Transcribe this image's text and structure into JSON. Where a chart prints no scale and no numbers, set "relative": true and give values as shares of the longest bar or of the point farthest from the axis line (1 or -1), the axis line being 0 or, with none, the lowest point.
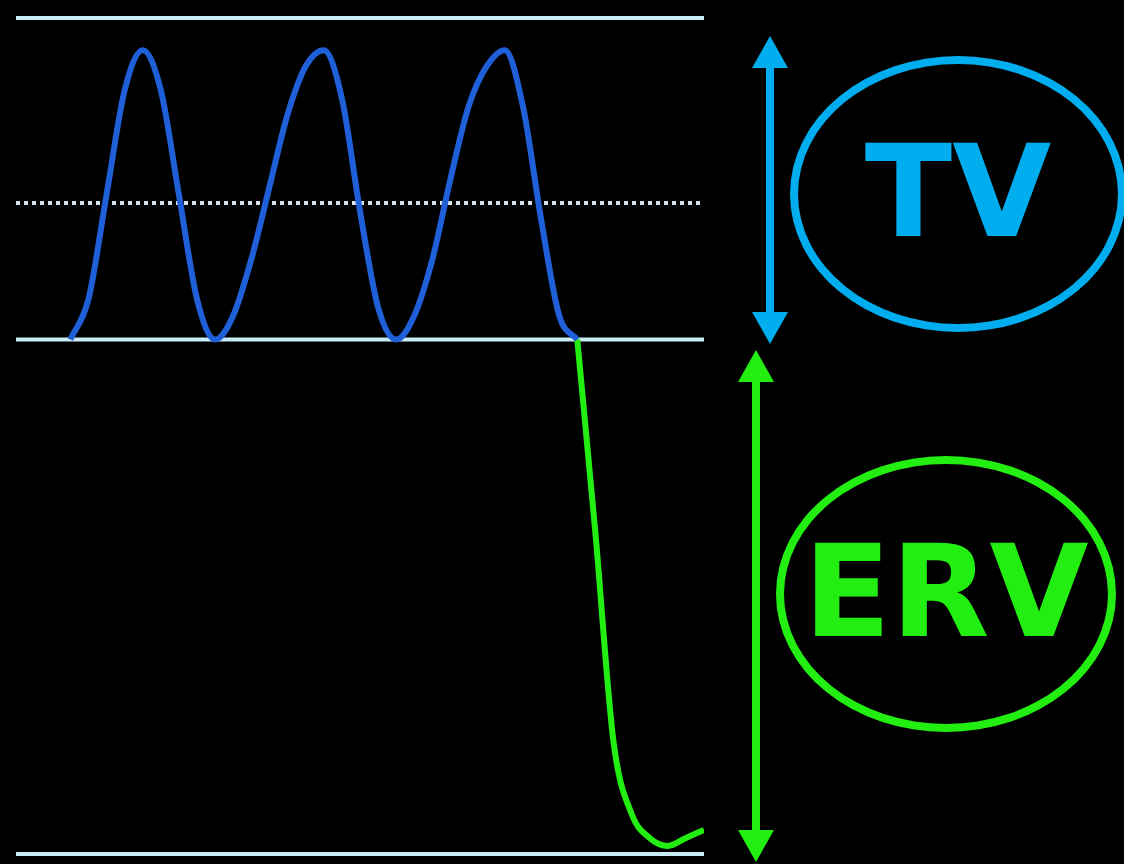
{
  "chart_data": {
    "type": "line",
    "relative": true,
    "marker": "none",
    "categories": [
      null,
      null,
      null,
      null,
      null,
      null,
      null,
      null,
      null,
      null,
      null,
      null,
      null,
      null,
      null,
      null,
      null,
      null,
      null,
      null,
      null,
      null,
      null,
      null,
      null,
      null,
      null,
      null,
      null,
      null,
      null,
      null,
      null,
      null,
      null,
      null,
      null,
      null,
      null
    ],
    "series": [
      {
        "color": "#1f5fd8",
        "values": [
          null,
          null,
          null,
          0.64,
          0.69,
          0.82,
          0.95,
          1,
          0.95,
          0.82,
          0.69,
          0.64,
          0.67,
          0.74,
          0.83,
          0.92,
          0.98,
          1,
          0.94,
          0.8,
          0.68,
          0.64,
          0.67,
          0.74,
          0.84,
          0.93,
          0.98,
          1,
          0.93,
          0.79,
          0.67,
          0.64,
          null,
          null,
          null,
          null,
          null,
          null,
          null
        ]
      },
      {
        "color": "#22ee11",
        "values": [
          null,
          null,
          null,
          null,
          null,
          null,
          null,
          null,
          null,
          null,
          null,
          null,
          null,
          null,
          null,
          null,
          null,
          null,
          null,
          null,
          null,
          null,
          null,
          null,
          null,
          null,
          null,
          null,
          null,
          null,
          null,
          0.64,
          0.4,
          0.14,
          0.05,
          0.02,
          0.01,
          0.02,
          0.03
        ]
      }
    ],
    "ref_lines": [
      {
        "axis": "y",
        "value": 1.04,
        "color": "#c8ecf5",
        "line_style": "solid"
      },
      {
        "axis": "y",
        "value": 0.81,
        "color": "#d8e4ee",
        "line_style": "dotted"
      },
      {
        "axis": "y",
        "value": 0.64,
        "color": "#c8ecf5",
        "line_style": "solid"
      },
      {
        "axis": "y",
        "value": 0,
        "color": "#c8ecf5",
        "line_style": "solid"
      }
    ],
    "annotations": [
      "TV",
      "ERV"
    ]
  }
}
